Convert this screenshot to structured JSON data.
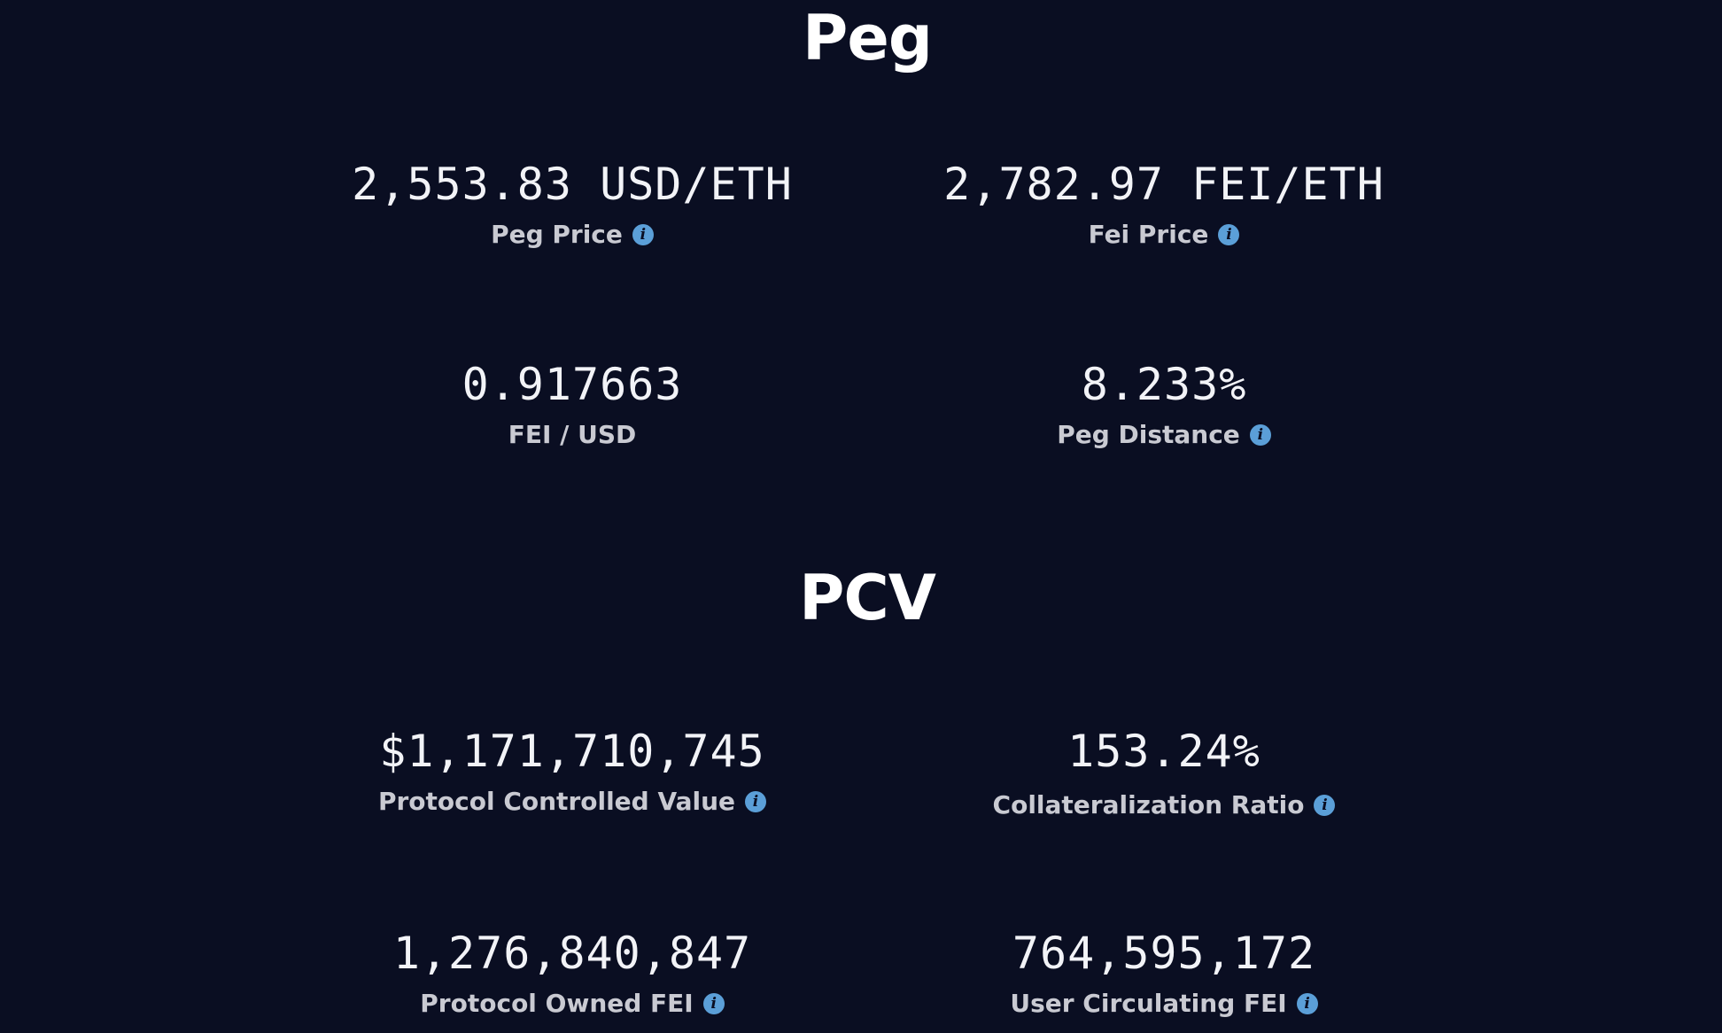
{
  "peg": {
    "title": "Peg",
    "stats": [
      {
        "value": "2,553.83 USD/ETH",
        "label": "Peg Price",
        "info_icon": "info-icon"
      },
      {
        "value": "2,782.97 FEI/ETH",
        "label": "Fei Price",
        "info_icon": "info-icon"
      },
      {
        "value": "0.917663",
        "label": "FEI / USD"
      },
      {
        "value": "8.233%",
        "label": "Peg Distance",
        "info_icon": "info-icon"
      }
    ]
  },
  "pcv": {
    "title": "PCV",
    "stats": [
      {
        "value": "$1,171,710,745",
        "label": "Protocol Controlled Value",
        "info_icon": "info-icon"
      },
      {
        "value": "153.24%",
        "label": "Collateralization Ratio",
        "info_icon": "info-icon"
      },
      {
        "value": "1,276,840,847",
        "label": "Protocol Owned FEI",
        "info_icon": "info-icon"
      },
      {
        "value": "764,595,172",
        "label": "User Circulating FEI",
        "info_icon": "info-icon"
      }
    ]
  },
  "icon_glyph": "i",
  "colors": {
    "background": "#0a0e22",
    "title": "#ffffff",
    "value": "#f2f3f7",
    "label": "#c9cad2",
    "info_icon": "#5b9fd8"
  }
}
